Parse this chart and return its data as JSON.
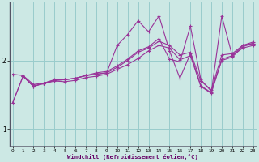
{
  "xlabel": "Windchill (Refroidissement éolien,°C)",
  "bg_color": "#cce8e4",
  "line_color": "#993399",
  "grid_color": "#99cccc",
  "x_ticks": [
    0,
    1,
    2,
    3,
    4,
    5,
    6,
    7,
    8,
    9,
    10,
    11,
    12,
    13,
    14,
    15,
    16,
    17,
    18,
    19,
    20,
    21,
    22,
    23
  ],
  "y_ticks": [
    1,
    2
  ],
  "ylim": [
    0.75,
    2.85
  ],
  "xlim": [
    -0.3,
    23.3
  ],
  "series": [
    {
      "x": [
        0,
        1,
        2,
        3,
        4,
        5,
        6,
        7,
        8,
        9,
        10,
        11,
        12,
        13,
        14,
        15,
        16,
        17,
        18,
        19,
        20,
        21,
        22,
        23
      ],
      "y": [
        1.38,
        1.77,
        1.62,
        1.67,
        1.71,
        1.72,
        1.74,
        1.78,
        1.8,
        1.82,
        2.22,
        2.38,
        2.58,
        2.42,
        2.65,
        2.14,
        1.74,
        2.1,
        1.63,
        1.53,
        2.65,
        2.07,
        2.18,
        2.22
      ]
    },
    {
      "x": [
        0,
        1,
        2,
        3,
        4,
        5,
        6,
        7,
        8,
        9,
        10,
        11,
        12,
        13,
        14,
        15,
        16,
        17,
        18,
        19,
        20,
        21,
        22,
        23
      ],
      "y": [
        1.38,
        1.77,
        1.62,
        1.67,
        1.71,
        1.72,
        1.74,
        1.78,
        1.8,
        1.82,
        1.9,
        2.0,
        2.12,
        2.18,
        2.28,
        2.22,
        2.08,
        2.12,
        1.7,
        1.57,
        2.08,
        2.1,
        2.22,
        2.27
      ]
    },
    {
      "x": [
        1,
        2,
        3,
        4,
        5,
        6,
        7,
        8,
        9,
        10,
        11,
        12,
        13,
        14,
        15,
        16,
        17,
        18,
        19,
        20,
        21,
        22,
        23
      ],
      "y": [
        1.77,
        1.63,
        1.66,
        1.7,
        1.69,
        1.71,
        1.75,
        1.77,
        1.8,
        1.87,
        1.94,
        2.03,
        2.14,
        2.22,
        2.18,
        2.01,
        2.07,
        1.62,
        1.52,
        2.02,
        2.07,
        2.22,
        2.25
      ]
    },
    {
      "x": [
        0,
        1,
        2,
        3,
        4,
        5,
        6,
        7,
        8,
        9,
        10,
        11,
        12,
        13,
        14,
        15,
        16,
        17,
        18,
        19,
        20,
        21,
        22,
        23
      ],
      "y": [
        1.8,
        1.78,
        1.65,
        1.67,
        1.72,
        1.72,
        1.74,
        1.78,
        1.82,
        1.84,
        1.92,
        2.02,
        2.14,
        2.2,
        2.32,
        2.02,
        1.98,
        2.5,
        1.72,
        1.55,
        2.0,
        2.05,
        2.2,
        2.25
      ]
    }
  ]
}
